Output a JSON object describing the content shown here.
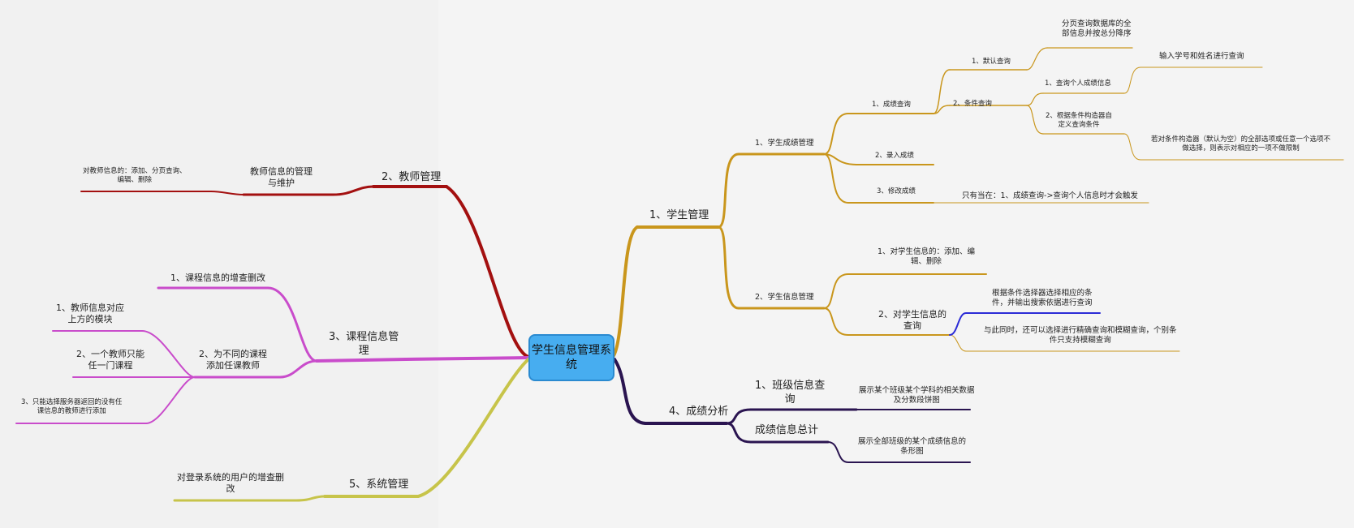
{
  "colors": {
    "student": "#c9961c",
    "teacher": "#a31010",
    "course": "#c94ccb",
    "score": "#2a1450",
    "system": "#c7c44a",
    "root_fill": "#47adf0",
    "highlight": "#2b2bd6"
  },
  "root": {
    "line1": "学生信息管理系",
    "line2": "统"
  },
  "student": {
    "label": "1、学生管理",
    "score_mgmt": {
      "label": "1、学生成绩管理",
      "query": {
        "label": "1、成绩查询",
        "default": {
          "label": "1、默认查询",
          "desc1": "分页查询数据库的全",
          "desc2": "部信息并按总分降序"
        },
        "cond": {
          "label": "2、条件查询",
          "personal": {
            "label": "1、查询个人成绩信息",
            "desc": "输入学号和姓名进行查询"
          },
          "builder": {
            "line1": "2、根据条件构造器自",
            "line2": "定义查询条件",
            "desc1": "若对条件构造器（默认为空）的全部选项或任意一个选项不",
            "desc2": "做选择，则表示对相应的一项不做限制"
          }
        }
      },
      "entry": "2、录入成绩",
      "edit": {
        "label": "3、修改成绩",
        "desc": "只有当在：1、成绩查询->查询个人信息时才会触发"
      }
    },
    "info_mgmt": {
      "label": "2、学生信息管理",
      "crud": {
        "line1": "1、对学生信息的：添加、编",
        "line2": "辑、删除"
      },
      "query": {
        "line1": "2、对学生信息的",
        "line2": "查询",
        "desc1a": "根据条件选择器选择相应的条",
        "desc1b": "件，并输出搜索依据进行查询",
        "desc2a": "与此同时，还可以选择进行精确查询和模糊查询，个别条",
        "desc2b": "件只支持模糊查询"
      }
    }
  },
  "score_analysis": {
    "label": "4、成绩分析",
    "class_query": {
      "line1": "1、班级信息查",
      "line2": "询",
      "desc1": "展示某个班级某个学科的相关数据",
      "desc2": "及分数段饼图"
    },
    "total": {
      "label": "成绩信息总计",
      "desc1": "展示全部班级的某个成绩信息的",
      "desc2": "条形图"
    }
  },
  "teacher": {
    "label": "2、教师管理",
    "maintain": {
      "line1": "教师信息的管理",
      "line2": "与维护",
      "desc1": "对教师信息的：添加、分页查询、",
      "desc2": "编辑、删除"
    }
  },
  "course": {
    "label1": "3、课程信息管",
    "label2": "理",
    "crud": "1、课程信息的增查删改",
    "assign": {
      "line1": "2、为不同的课程",
      "line2": "添加任课教师",
      "n1a": "1、教师信息对应",
      "n1b": "上方的模块",
      "n2a": "2、一个教师只能",
      "n2b": "任一门课程",
      "n3a": "3、只能选择服务器返回的没有任",
      "n3b": "课信息的教师进行添加"
    }
  },
  "system": {
    "label": "5、系统管理",
    "desc1": "对登录系统的用户的增查删",
    "desc2": "改"
  }
}
